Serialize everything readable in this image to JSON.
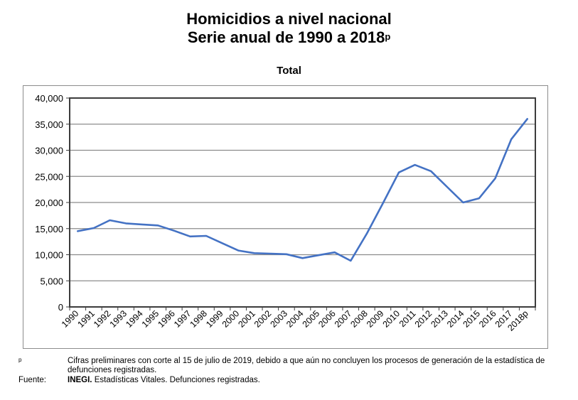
{
  "header": {
    "title_line1": "Homicidios a nivel nacional",
    "title_line2": "Serie anual de 1990 a 2018",
    "title_superscript": "p"
  },
  "chart_data": {
    "type": "line",
    "title": "Total",
    "xlabel": "",
    "ylabel": "",
    "ylim": [
      0,
      40000
    ],
    "yticks": [
      0,
      5000,
      10000,
      15000,
      20000,
      25000,
      30000,
      35000,
      40000
    ],
    "ytick_labels": [
      "0",
      "5,000",
      "10,000",
      "15,000",
      "20,000",
      "25,000",
      "30,000",
      "35,000",
      "40,000"
    ],
    "grid": true,
    "legend": "none",
    "line_color": "#4472C4",
    "categories": [
      "1990",
      "1991",
      "1992",
      "1993",
      "1994",
      "1995",
      "1996",
      "1997",
      "1998",
      "1999",
      "2000",
      "2001",
      "2002",
      "2003",
      "2004",
      "2005",
      "2006",
      "2007",
      "2008",
      "2009",
      "2010",
      "2011",
      "2012",
      "2013",
      "2014",
      "2015",
      "2016",
      "2017",
      "2018p"
    ],
    "series": [
      {
        "name": "Total",
        "values": [
          14500,
          15100,
          16600,
          16000,
          15800,
          15600,
          14600,
          13500,
          13600,
          12200,
          10800,
          10300,
          10200,
          10100,
          9350,
          9900,
          10450,
          8850,
          14000,
          19800,
          25750,
          27200,
          26000,
          23000,
          20000,
          20800,
          24600,
          32100,
          36000
        ]
      }
    ]
  },
  "footnotes": {
    "p_mark": "p",
    "p_text": "Cifras preliminares con corte al 15 de julio de 2019, debido a que aún no concluyen los procesos de generación de la estadística de defunciones registradas.",
    "source_label": "Fuente:",
    "source_bold": "INEGI.",
    "source_text": " Estadísticas Vitales. Defunciones registradas."
  }
}
